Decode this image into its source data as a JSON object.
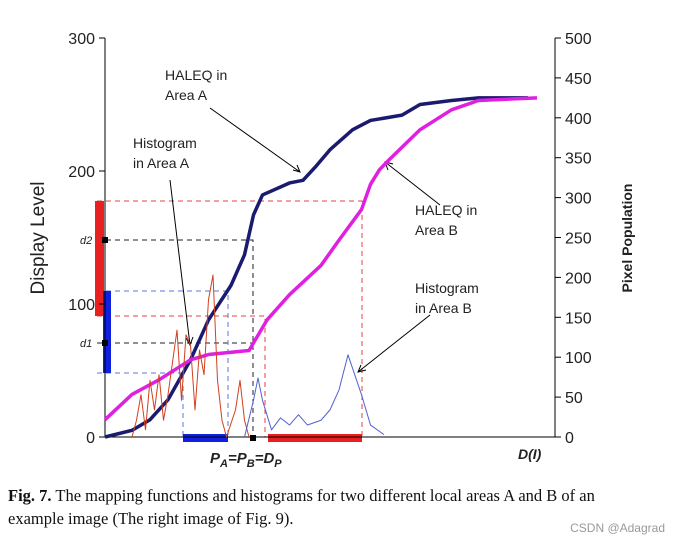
{
  "chart_data": {
    "type": "line",
    "ylabel": "Display Level",
    "y2label": "Pixel Population",
    "xlabel": "D(I)",
    "xlim": [
      0,
      100
    ],
    "ylim": [
      0,
      300
    ],
    "yticks": [
      0,
      100,
      200,
      300
    ],
    "y2lim": [
      0,
      500
    ],
    "y2ticks": [
      0,
      50,
      100,
      150,
      200,
      250,
      300,
      350,
      400,
      450,
      500
    ],
    "series": [
      {
        "name": "HALEQ in Area A",
        "color": "#1a1a6e",
        "width": 3.5,
        "x": [
          0,
          6,
          10,
          14,
          19,
          23,
          28,
          31,
          33,
          35,
          41,
          44,
          47,
          50,
          55,
          59,
          66,
          70,
          77,
          83,
          94
        ],
        "values": [
          0,
          5,
          13,
          28,
          58,
          88,
          114,
          137,
          167,
          182,
          191,
          193,
          204,
          216,
          231,
          238,
          242,
          250,
          253,
          255,
          255
        ]
      },
      {
        "name": "HALEQ in Area B",
        "color": "#e020e0",
        "width": 3.5,
        "x": [
          0,
          6,
          12,
          19,
          23,
          32,
          36,
          41,
          48,
          52,
          57,
          59,
          61,
          63,
          70,
          77,
          83,
          96
        ],
        "values": [
          13,
          32,
          43,
          58,
          62,
          65,
          88,
          107,
          129,
          148,
          171,
          190,
          201,
          208,
          231,
          246,
          253,
          255
        ]
      },
      {
        "name": "Histogram in Area A",
        "color": "#d04020",
        "width": 1,
        "axis": "y2",
        "x": [
          6,
          7,
          8,
          9,
          10,
          11,
          12,
          13,
          14,
          16,
          17,
          18,
          19,
          20,
          21,
          22,
          23,
          24,
          25,
          26,
          27,
          29,
          30,
          31,
          32
        ],
        "values": [
          0,
          21,
          53,
          9,
          71,
          34,
          78,
          21,
          53,
          134,
          46,
          128,
          115,
          34,
          109,
          78,
          172,
          203,
          71,
          21,
          0,
          34,
          71,
          21,
          0
        ]
      },
      {
        "name": "Histogram in Area B",
        "color": "#5060d0",
        "width": 1,
        "axis": "y2",
        "x": [
          31,
          33,
          34,
          35,
          37,
          39,
          41,
          43,
          45,
          48,
          50,
          52,
          54,
          57,
          59,
          62
        ],
        "values": [
          0,
          46,
          74,
          46,
          9,
          24,
          15,
          28,
          15,
          21,
          34,
          59,
          103,
          53,
          15,
          3
        ]
      }
    ],
    "annotations": [
      [
        "HALEQ in",
        "Area A"
      ],
      [
        "Histogram",
        "in Area A"
      ],
      [
        "HALEQ in",
        "Area B"
      ],
      [
        "Histogram",
        "in Area B"
      ]
    ],
    "level_labels": [
      "d1",
      "d2"
    ],
    "point_label": [
      {
        "text": "P"
      },
      {
        "text": "A",
        "sub": true
      },
      {
        "text": "=P"
      },
      {
        "text": "B",
        "sub": true
      },
      {
        "text": "=D"
      },
      {
        "text": "P",
        "sub": true
      }
    ]
  },
  "caption": {
    "label": "Fig. 7.",
    "text": "The mapping functions and histograms for two different local areas A and B of an example image (The right image of Fig. 9)."
  },
  "watermark": "CSDN @Adagrad"
}
